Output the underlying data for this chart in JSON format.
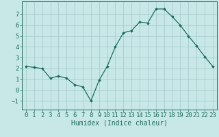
{
  "x_data": [
    0,
    1,
    2,
    3,
    4,
    5,
    6,
    7,
    8,
    9,
    10,
    11,
    12,
    13,
    14,
    15,
    16,
    17,
    18,
    19,
    20,
    21,
    22,
    23
  ],
  "y_data": [
    2.2,
    2.1,
    2.0,
    1.1,
    1.3,
    1.1,
    0.5,
    0.3,
    -1.0,
    0.9,
    2.2,
    4.0,
    5.3,
    5.5,
    6.3,
    6.2,
    7.5,
    7.5,
    6.8,
    6.0,
    5.0,
    4.1,
    3.1,
    2.2
  ],
  "line_color": "#1a6b5a",
  "marker_color": "#1a6b5a",
  "bg_color": "#c8e8e8",
  "grid_color": "#a8cccc",
  "axis_color": "#1a6b5a",
  "xlabel": "Humidex (Indice chaleur)",
  "xlim": [
    -0.5,
    23.5
  ],
  "ylim": [
    -1.8,
    8.2
  ],
  "yticks": [
    -1,
    0,
    1,
    2,
    3,
    4,
    5,
    6,
    7
  ],
  "xticks": [
    0,
    1,
    2,
    3,
    4,
    5,
    6,
    7,
    8,
    9,
    10,
    11,
    12,
    13,
    14,
    15,
    16,
    17,
    18,
    19,
    20,
    21,
    22,
    23
  ],
  "font_size": 6.5,
  "xlabel_fontsize": 7.0
}
